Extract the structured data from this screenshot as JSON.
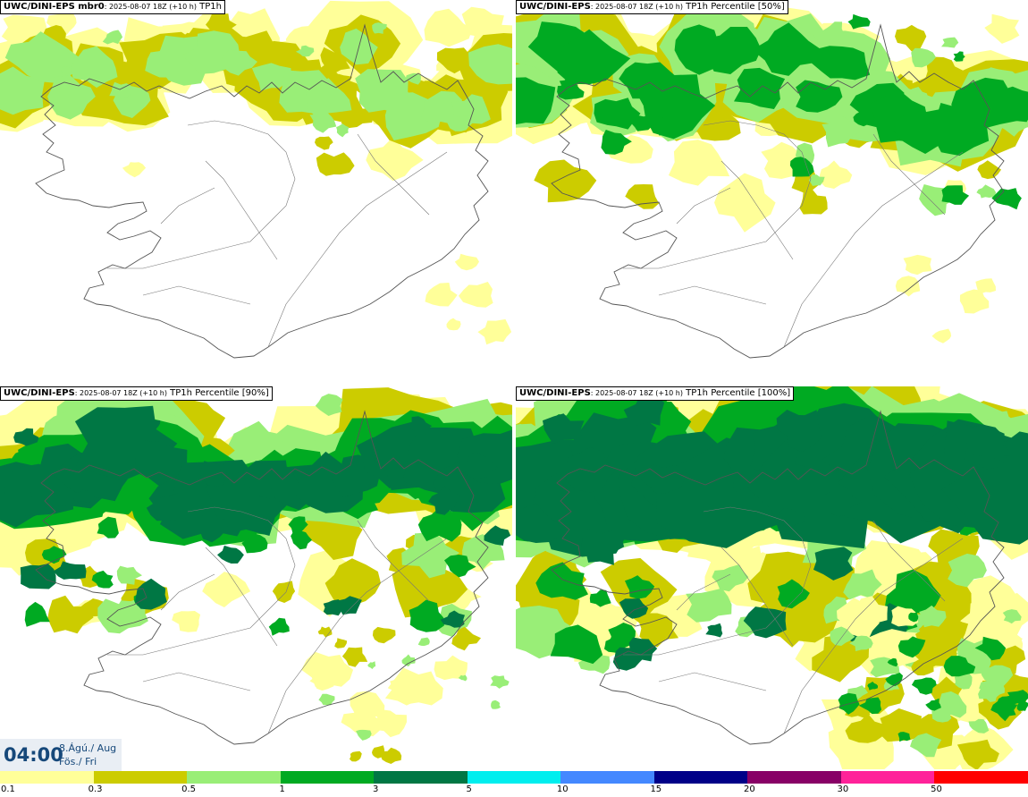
{
  "panels": [
    {
      "label_bold": "UWC/DINI-EPS mbr0",
      "label_run": ": 2025-08-07 18Z (+10 h)",
      "label_var": "TP1h",
      "intensity": 1
    },
    {
      "label_bold": "UWC/DINI-EPS",
      "label_run": ": 2025-08-07 18Z (+10 h)",
      "label_var": "TP1h Percentile [50%]",
      "intensity": 2
    },
    {
      "label_bold": "UWC/DINI-EPS",
      "label_run": ": 2025-08-07 18Z (+10 h)",
      "label_var": "TP1h Percentile [90%]",
      "intensity": 3
    },
    {
      "label_bold": "UWC/DINI-EPS",
      "label_run": ": 2025-08-07 18Z (+10 h)",
      "label_var": "TP1h Percentile [100%]",
      "intensity": 4
    }
  ],
  "time": {
    "clock": "04:00",
    "date_line1": "8.Ágú./ Aug",
    "date_line2": "Fös./ Fri"
  },
  "legend": {
    "labels": [
      "0.1",
      "0.3",
      "0.5",
      "1",
      "3",
      "5",
      "10",
      "15",
      "20",
      "30",
      "50"
    ],
    "colors": [
      "#ffff99",
      "#cccc00",
      "#99ee77",
      "#00aa22",
      "#007744",
      "#00eeee",
      "#4488ff",
      "#000088",
      "#880066",
      "#ff2299",
      "#ff0000"
    ]
  },
  "map_colors": {
    "c01": "#ffff99",
    "c03": "#cccc00",
    "c05": "#99ee77",
    "c1": "#00aa22",
    "c3": "#007744",
    "c5": "#00eeee",
    "coast": "#555555"
  }
}
